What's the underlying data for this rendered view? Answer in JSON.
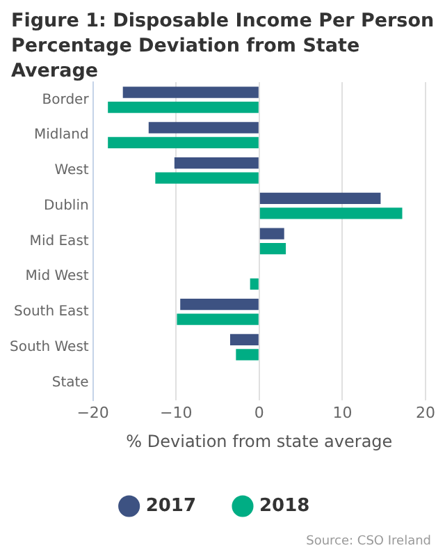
{
  "chart_data": {
    "type": "bar",
    "orientation": "horizontal",
    "title": "Figure 1: Disposable Income Per Person Percentage Deviation from State Average",
    "xlabel": "% Deviation from state average",
    "categories": [
      "Border",
      "Midland",
      "West",
      "Dublin",
      "Mid East",
      "Mid West",
      "South East",
      "South West",
      "State"
    ],
    "series": [
      {
        "name": "2017",
        "color": "#3d5282",
        "values": [
          -16.4,
          -13.3,
          -10.2,
          14.6,
          3.0,
          0,
          -9.5,
          -3.5,
          0
        ]
      },
      {
        "name": "2018",
        "color": "#00ad84",
        "values": [
          -18.2,
          -18.2,
          -12.5,
          17.2,
          3.2,
          -1.1,
          -9.9,
          -2.8,
          0
        ]
      }
    ],
    "xlim": [
      -20,
      20
    ],
    "xticks": [
      -20,
      -10,
      0,
      10,
      20
    ],
    "grid": "x",
    "legend": "bottom",
    "annotations": [
      "Source: CSO Ireland"
    ]
  }
}
